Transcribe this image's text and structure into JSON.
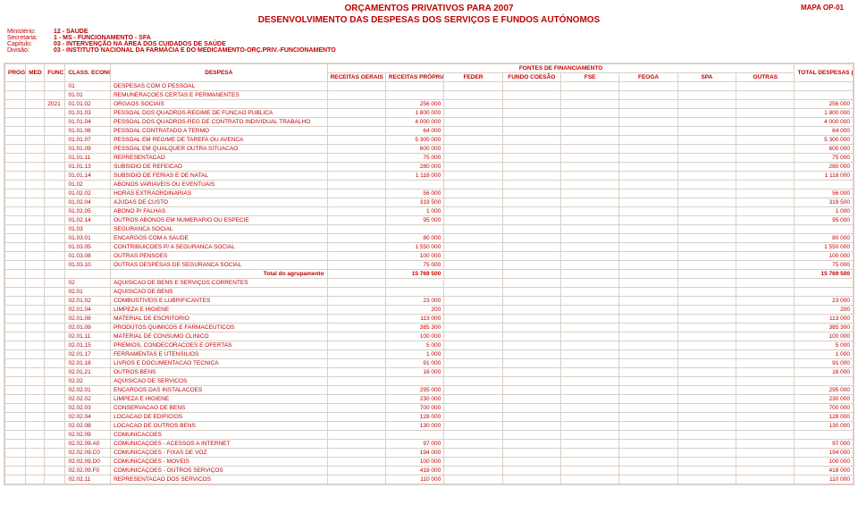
{
  "header": {
    "main_title": "ORÇAMENTOS PRIVATIVOS PARA 2007",
    "mapa": "MAPA OP-01",
    "sub_title": "DESENVOLVIMENTO DAS DESPESAS DOS SERVIÇOS E FUNDOS AUTÓNOMOS",
    "meta": [
      {
        "label": "Ministério:",
        "value": "12 - SAUDE"
      },
      {
        "label": "Secretaria:",
        "value": "1 - MS - FUNCIONAMENTO - SFA"
      },
      {
        "label": "Capítulo:",
        "value": "03 - INTERVENÇÃO NA ÁREA DOS CUIDADOS DE SAÚDE"
      },
      {
        "label": "Divisão:",
        "value": "03 - INSTITUTO NACIONAL DA FARMÁCIA E DO MEDICAMENTO-ORÇ.PRIV.-FUNCIONAMENTO"
      }
    ]
  },
  "columns": {
    "prog": "PROG",
    "med": "MED",
    "func": "FUNC",
    "class": "CLASS. ECONÓMICA",
    "despesa": "DESPESA",
    "fontes": "FONTES DE FINANCIAMENTO",
    "rec_gerais": "RECEITAS GERAIS",
    "rec_proprias": "RECEITAS PRÓPRIAS",
    "feder": "FEDER",
    "fundo_coesao": "FUNDO COESÃO",
    "fse": "FSE",
    "feoga": "FEOGA",
    "spa": "SPA",
    "outras": "OUTRAS",
    "total": "TOTAL DESPESAS (EM EUROS)"
  },
  "rows": [
    {
      "prog": "",
      "med": "",
      "func": "",
      "code": "01",
      "desc": "DESPESAS COM O PESSOAL",
      "rp": "",
      "total": ""
    },
    {
      "prog": "",
      "med": "",
      "func": "",
      "code": "01.01",
      "desc": "REMUNERACOES CERTAS E PERMANENTES",
      "rp": "",
      "total": ""
    },
    {
      "prog": "",
      "med": "",
      "func": "2021",
      "code": "01.01.02",
      "desc": "ORGAOS SOCIAIS",
      "rp": "256 000",
      "total": "256 000"
    },
    {
      "prog": "",
      "med": "",
      "func": "",
      "code": "01.01.03",
      "desc": "PESSOAL DOS QUADROS-REGIME DE FUNCAO PUBLICA",
      "rp": "1 800 000",
      "total": "1 800 000"
    },
    {
      "prog": "",
      "med": "",
      "func": "",
      "code": "01.01.04",
      "desc": "PESSOAL DOS QUADROS-REG DE CONTRATO INDIVIDUAL TRABALHO",
      "rp": "4 000 000",
      "total": "4 000 000"
    },
    {
      "prog": "",
      "med": "",
      "func": "",
      "code": "01.01.06",
      "desc": "PESSOAL CONTRATADO A TERMO",
      "rp": "64 000",
      "total": "64 000"
    },
    {
      "prog": "",
      "med": "",
      "func": "",
      "code": "01.01.07",
      "desc": "PESSOAL EM REGIME DE TAREFA OU AVENCA",
      "rp": "5 300 000",
      "total": "5 300 000"
    },
    {
      "prog": "",
      "med": "",
      "func": "",
      "code": "01.01.09",
      "desc": "PESSOAL EM QUALQUER OUTRA SITUACAO",
      "rp": "600 000",
      "total": "600 000"
    },
    {
      "prog": "",
      "med": "",
      "func": "",
      "code": "01.01.11",
      "desc": "REPRESENTACAO",
      "rp": "75 000",
      "total": "75 000"
    },
    {
      "prog": "",
      "med": "",
      "func": "",
      "code": "01.01.13",
      "desc": "SUBSIDIO DE REFEICAO",
      "rp": "280 000",
      "total": "280 000"
    },
    {
      "prog": "",
      "med": "",
      "func": "",
      "code": "01.01.14",
      "desc": "SUBSIDIO DE FERIAS E DE NATAL",
      "rp": "1 118 000",
      "total": "1 118 000"
    },
    {
      "prog": "",
      "med": "",
      "func": "",
      "code": "01.02",
      "desc": "ABONOS VARIAVEIS OU EVENTUAIS",
      "rp": "",
      "total": ""
    },
    {
      "prog": "",
      "med": "",
      "func": "",
      "code": "01.02.02",
      "desc": "HORAS EXTRAORDINARIAS",
      "rp": "56 000",
      "total": "56 000"
    },
    {
      "prog": "",
      "med": "",
      "func": "",
      "code": "01.02.04",
      "desc": "AJUDAS DE CUSTO",
      "rp": "319 500",
      "total": "319 500"
    },
    {
      "prog": "",
      "med": "",
      "func": "",
      "code": "01.02.05",
      "desc": "ABONO P/ FALHAS",
      "rp": "1 000",
      "total": "1 000"
    },
    {
      "prog": "",
      "med": "",
      "func": "",
      "code": "01.02.14",
      "desc": "OUTROS ABONOS EM NUMERARIO OU ESPECIE",
      "rp": "95 000",
      "total": "95 000"
    },
    {
      "prog": "",
      "med": "",
      "func": "",
      "code": "01.03",
      "desc": "SEGURANCA SOCIAL",
      "rp": "",
      "total": ""
    },
    {
      "prog": "",
      "med": "",
      "func": "",
      "code": "01.03.01",
      "desc": "ENCARGOS COM A SAUDE",
      "rp": "80 000",
      "total": "80 000"
    },
    {
      "prog": "",
      "med": "",
      "func": "",
      "code": "01.03.05",
      "desc": "CONTRIBUICOES P/ A SEGURANCA SOCIAL",
      "rp": "1 550 000",
      "total": "1 550 000"
    },
    {
      "prog": "",
      "med": "",
      "func": "",
      "code": "01.03.08",
      "desc": "OUTRAS PENSOES",
      "rp": "100 000",
      "total": "100 000"
    },
    {
      "prog": "",
      "med": "",
      "func": "",
      "code": "01.03.10",
      "desc": "OUTRAS DESPESAS DE SEGURANCA SOCIAL",
      "rp": "75 000",
      "total": "75 000"
    },
    {
      "prog": "",
      "med": "",
      "func": "",
      "code": "",
      "desc": "Total do agrupamento",
      "rp": "15 769 500",
      "total": "15 769 500",
      "is_total": true
    },
    {
      "prog": "",
      "med": "",
      "func": "",
      "code": "02",
      "desc": "AQUISICAO DE BENS E SERVIÇOS CORRENTES",
      "rp": "",
      "total": ""
    },
    {
      "prog": "",
      "med": "",
      "func": "",
      "code": "02.01",
      "desc": "AQUISICAO DE BENS",
      "rp": "",
      "total": ""
    },
    {
      "prog": "",
      "med": "",
      "func": "",
      "code": "02.01.02",
      "desc": "COMBUSTIVEIS E LUBRIFICANTES",
      "rp": "23 000",
      "total": "23 000"
    },
    {
      "prog": "",
      "med": "",
      "func": "",
      "code": "02.01.04",
      "desc": "LIMPEZA E HIGIENE",
      "rp": "200",
      "total": "200"
    },
    {
      "prog": "",
      "med": "",
      "func": "",
      "code": "02.01.08",
      "desc": "MATERIAL DE ESCRITORIO",
      "rp": "113 000",
      "total": "113 000"
    },
    {
      "prog": "",
      "med": "",
      "func": "",
      "code": "02.01.09",
      "desc": "PRODUTOS QUIMICOS E FARMACEUTICOS",
      "rp": "385 300",
      "total": "385 300"
    },
    {
      "prog": "",
      "med": "",
      "func": "",
      "code": "02.01.11",
      "desc": "MATERIAL DE CONSUMO CLINICO",
      "rp": "100 000",
      "total": "100 000"
    },
    {
      "prog": "",
      "med": "",
      "func": "",
      "code": "02.01.15",
      "desc": "PREMIOS, CONDECORACOES E OFERTAS",
      "rp": "5 000",
      "total": "5 000"
    },
    {
      "prog": "",
      "med": "",
      "func": "",
      "code": "02.01.17",
      "desc": "FERRAMENTAS E UTENSILIOS",
      "rp": "1 000",
      "total": "1 000"
    },
    {
      "prog": "",
      "med": "",
      "func": "",
      "code": "02.01.18",
      "desc": "LIVROS E DOCUMENTACAO TECNICA",
      "rp": "91 000",
      "total": "91 000"
    },
    {
      "prog": "",
      "med": "",
      "func": "",
      "code": "02.01.21",
      "desc": "OUTROS BENS",
      "rp": "16 000",
      "total": "16 000"
    },
    {
      "prog": "",
      "med": "",
      "func": "",
      "code": "02.02",
      "desc": "AQUISICAO DE SERVICOS",
      "rp": "",
      "total": ""
    },
    {
      "prog": "",
      "med": "",
      "func": "",
      "code": "02.02.01",
      "desc": "ENCARGOS DAS INSTALACOES",
      "rp": "295 000",
      "total": "295 000"
    },
    {
      "prog": "",
      "med": "",
      "func": "",
      "code": "02.02.02",
      "desc": "LIMPEZA E HIGIENE",
      "rp": "230 000",
      "total": "230 000"
    },
    {
      "prog": "",
      "med": "",
      "func": "",
      "code": "02.02.03",
      "desc": "CONSERVACAO DE BENS",
      "rp": "700 000",
      "total": "700 000"
    },
    {
      "prog": "",
      "med": "",
      "func": "",
      "code": "02.02.04",
      "desc": "LOCACAO DE EDIFICIOS",
      "rp": "128 000",
      "total": "128 000"
    },
    {
      "prog": "",
      "med": "",
      "func": "",
      "code": "02.02.08",
      "desc": "LOCACAO DE OUTROS BENS",
      "rp": "130 000",
      "total": "130 000"
    },
    {
      "prog": "",
      "med": "",
      "func": "",
      "code": "02.02.09",
      "desc": "COMUNICACOES",
      "rp": "",
      "total": ""
    },
    {
      "prog": "",
      "med": "",
      "func": "",
      "code": "02.02.09.A0",
      "desc": "COMUNICAÇOES - ACESSOS A INTERNET",
      "rp": "97 000",
      "total": "97 000"
    },
    {
      "prog": "",
      "med": "",
      "func": "",
      "code": "02.02.09.C0",
      "desc": "COMUNICAÇOES - FIXAS DE VOZ",
      "rp": "194 000",
      "total": "194 000"
    },
    {
      "prog": "",
      "med": "",
      "func": "",
      "code": "02.02.09.D0",
      "desc": "COMUNICAÇOES - MOVEIS",
      "rp": "100 000",
      "total": "100 000"
    },
    {
      "prog": "",
      "med": "",
      "func": "",
      "code": "02.02.09.F0",
      "desc": "COMUNICAÇOES - OUTROS SERVIÇOS",
      "rp": "418 000",
      "total": "418 000"
    },
    {
      "prog": "",
      "med": "",
      "func": "",
      "code": "02.02.11",
      "desc": "REPRESENTACAO DOS SERVICOS",
      "rp": "110 000",
      "total": "110 000"
    }
  ]
}
